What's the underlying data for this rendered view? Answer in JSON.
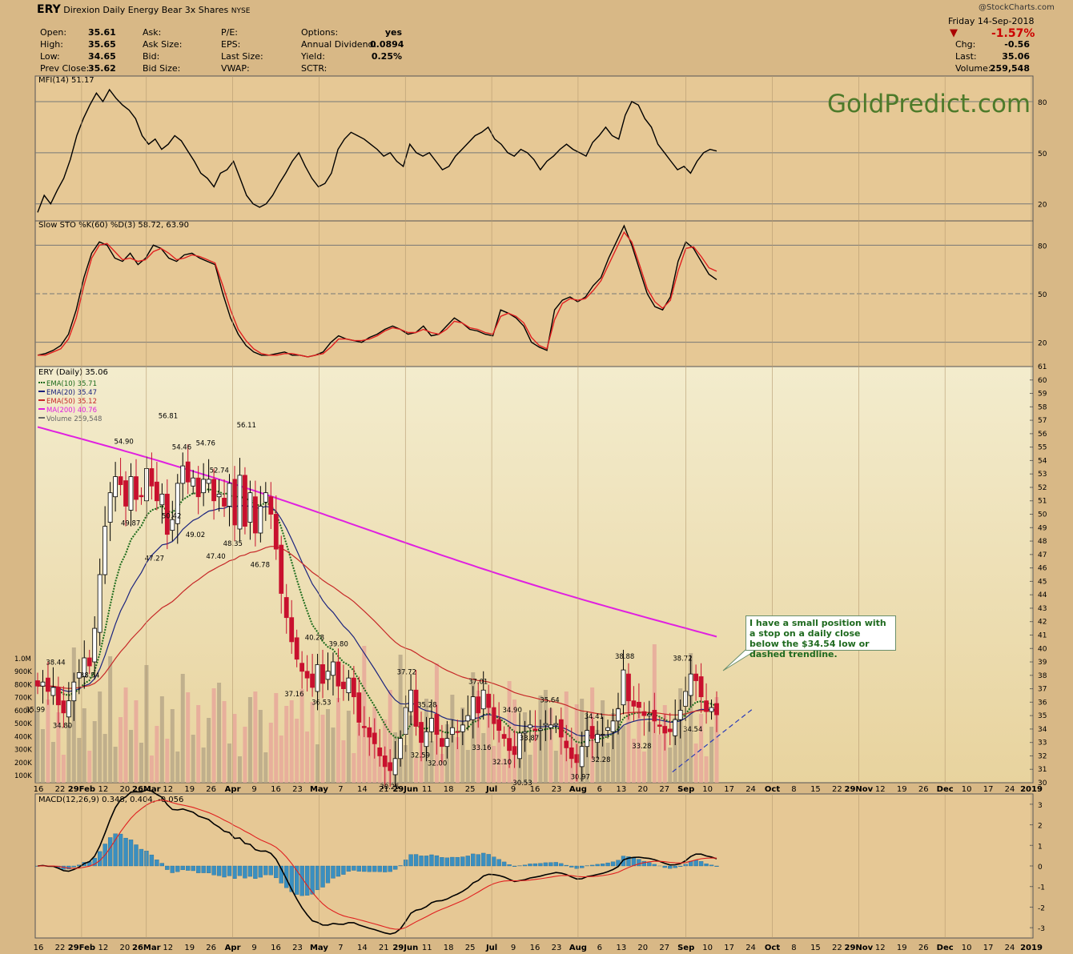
{
  "header": {
    "symbol": "ERY",
    "name": "Direxion Daily Energy Bear 3x Shares",
    "exchange": "NYSE",
    "source": "@StockCharts.com",
    "date": "Friday  14-Sep-2018",
    "change_pct": "-1.57%",
    "fields": [
      {
        "k": "Open:",
        "v": "35.61"
      },
      {
        "k": "High:",
        "v": "35.65"
      },
      {
        "k": "Low:",
        "v": "34.65"
      },
      {
        "k": "Prev Close:",
        "v": "35.62"
      }
    ],
    "fields2": [
      "Ask:",
      "Ask Size:",
      "Bid:",
      "Bid Size:"
    ],
    "fields3": [
      "P/E:",
      "EPS:",
      "Last Size:",
      "VWAP:"
    ],
    "fields4": [
      {
        "k": "Options:",
        "v": "yes"
      },
      {
        "k": "Annual Dividend:",
        "v": "0.0894"
      },
      {
        "k": "Yield:",
        "v": "0.25%"
      },
      {
        "k": "SCTR:",
        "v": ""
      }
    ],
    "right": [
      {
        "k": "Chg:",
        "v": "-0.56"
      },
      {
        "k": "Last:",
        "v": "35.06"
      },
      {
        "k": "Volume:",
        "v": "259,548"
      }
    ]
  },
  "watermark": "GoldPredict.com",
  "annotation": "I have a small position with a stop on a daily close below the $34.54 low or dashed trendline.",
  "chart_data": [
    {
      "type": "line",
      "title": "MFI(14) 51.17",
      "y_ticks": [
        80,
        50,
        20
      ],
      "ylim": [
        10,
        95
      ],
      "series": [
        {
          "name": "MFI(14)",
          "color": "#000000",
          "values": [
            15,
            25,
            20,
            28,
            35,
            46,
            60,
            70,
            78,
            85,
            80,
            87,
            82,
            78,
            75,
            70,
            60,
            55,
            58,
            52,
            55,
            60,
            57,
            51,
            45,
            38,
            35,
            30,
            38,
            40,
            45,
            35,
            25,
            20,
            18,
            20,
            25,
            32,
            38,
            45,
            50,
            42,
            35,
            30,
            32,
            38,
            52,
            58,
            62,
            60,
            58,
            55,
            52,
            48,
            50,
            45,
            42,
            55,
            50,
            48,
            50,
            45,
            40,
            42,
            48,
            52,
            56,
            60,
            62,
            65,
            58,
            55,
            50,
            48,
            52,
            50,
            46,
            40,
            45,
            48,
            52,
            55,
            52,
            50,
            48,
            56,
            60,
            65,
            60,
            58,
            72,
            80,
            78,
            70,
            65,
            55,
            50,
            45,
            40,
            42,
            38,
            45,
            50,
            52,
            51
          ]
        }
      ]
    },
    {
      "type": "line",
      "title": "Slow STO %K(60) %D(3) 58.72, 63.90",
      "y_ticks": [
        80,
        50,
        20
      ],
      "ylim": [
        5,
        95
      ],
      "series": [
        {
          "name": "%K(60)",
          "color": "#000000",
          "values": [
            12,
            13,
            15,
            18,
            25,
            40,
            60,
            75,
            82,
            80,
            72,
            70,
            75,
            68,
            72,
            80,
            78,
            72,
            70,
            74,
            75,
            72,
            70,
            68,
            50,
            35,
            25,
            18,
            14,
            12,
            12,
            13,
            14,
            12,
            12,
            11,
            12,
            14,
            20,
            24,
            22,
            21,
            20,
            23,
            25,
            28,
            30,
            28,
            25,
            26,
            30,
            24,
            25,
            30,
            35,
            32,
            28,
            27,
            25,
            24,
            40,
            38,
            35,
            30,
            20,
            17,
            15,
            40,
            46,
            48,
            45,
            48,
            55,
            60,
            72,
            82,
            92,
            80,
            65,
            50,
            42,
            40,
            48,
            70,
            82,
            78,
            70,
            62,
            58.72
          ]
        },
        {
          "name": "%D(3)",
          "color": "#e02020",
          "values": [
            12,
            12,
            14,
            16,
            22,
            35,
            55,
            72,
            80,
            81,
            76,
            71,
            72,
            70,
            71,
            76,
            78,
            75,
            71,
            72,
            74,
            73,
            71,
            69,
            55,
            40,
            28,
            21,
            16,
            13,
            12,
            12,
            13,
            13,
            12,
            11,
            12,
            13,
            17,
            22,
            22,
            21,
            21,
            22,
            24,
            27,
            29,
            28,
            26,
            26,
            28,
            26,
            25,
            28,
            33,
            32,
            29,
            28,
            26,
            25,
            36,
            38,
            36,
            32,
            23,
            18,
            16,
            34,
            44,
            47,
            46,
            47,
            52,
            58,
            68,
            78,
            88,
            82,
            68,
            53,
            45,
            41,
            46,
            64,
            78,
            79,
            73,
            66,
            63.9
          ]
        }
      ]
    },
    {
      "type": "candlestick",
      "title": "ERY (Daily) 35.06",
      "ylim": [
        30,
        61
      ],
      "y_ticks": [
        30,
        31,
        32,
        33,
        34,
        35,
        36,
        37,
        38,
        39,
        40,
        41,
        42,
        43,
        44,
        45,
        46,
        47,
        48,
        49,
        50,
        51,
        52,
        53,
        54,
        55,
        56,
        57,
        58,
        59,
        60,
        61
      ],
      "legend": [
        {
          "name": "EMA(10) 35.71",
          "color": "#1a6a1a"
        },
        {
          "name": "EMA(20) 35.47",
          "color": "#1a237e"
        },
        {
          "name": "EMA(50) 35.12",
          "color": "#c62828"
        },
        {
          "name": "MA(200) 40.76",
          "color": "#e020e0"
        },
        {
          "name": "Volume 259,548",
          "color": "#666666"
        }
      ],
      "closes": [
        37.2,
        37.5,
        36.8,
        37.1,
        35.8,
        35.2,
        36.1,
        37.5,
        38.2,
        39.3,
        38.7,
        41.5,
        45.5,
        49.1,
        51.6,
        52.8,
        52.2,
        50.6,
        52.8,
        51.1,
        51.3,
        53.4,
        52.1,
        51.0,
        51.5,
        48.5,
        49.6,
        52.3,
        53.6,
        52.4,
        52.7,
        51.3,
        52.6,
        52.6,
        51.0,
        51.5,
        50.6,
        52.3,
        49.2,
        52.9,
        49.1,
        51.6,
        48.6,
        50.6,
        51.6,
        50.0,
        47.4,
        44.1,
        42.3,
        40.5,
        39.2,
        38.3,
        37.8,
        37.1,
        38.8,
        37.4,
        38.3,
        39.0,
        37.2,
        37.0,
        37.8,
        36.4,
        34.5,
        34.1,
        33.4,
        32.9,
        32.0,
        31.2,
        30.9,
        31.8,
        33.3,
        35.6,
        36.9,
        34.2,
        33.0,
        33.8,
        34.8,
        33.6,
        32.7,
        33.3,
        34.1,
        33.8,
        34.3,
        35.0,
        36.4,
        35.2,
        36.9,
        35.6,
        34.4,
        33.9,
        33.3,
        32.4,
        32.1,
        33.7,
        33.8,
        34.3,
        33.9,
        34.0,
        34.4,
        34.3,
        34.4,
        33.4,
        32.6,
        31.8,
        31.5,
        32.7,
        33.9,
        33.3,
        33.6,
        33.6,
        34.1,
        34.6,
        35.5,
        38.4,
        36.1,
        35.7,
        35.6,
        35.0,
        35.1,
        34.6,
        34.2,
        33.7,
        33.8,
        34.7,
        35.4,
        36.8,
        38.1,
        37.6,
        36.4,
        35.3,
        35.6,
        35.06
      ],
      "labels": [
        {
          "t": "38.44",
          "x": 0.03,
          "y": 38.44,
          "up": true
        },
        {
          "t": "35.99",
          "x": 0.0,
          "y": 35.99,
          "up": false
        },
        {
          "t": "34.80",
          "x": 0.04,
          "y": 34.8,
          "up": false
        },
        {
          "t": "38.54",
          "x": 0.08,
          "y": 38.54,
          "up": false
        },
        {
          "t": "54.90",
          "x": 0.13,
          "y": 54.9,
          "up": true
        },
        {
          "t": "49.87",
          "x": 0.14,
          "y": 49.87,
          "up": false
        },
        {
          "t": "47.27",
          "x": 0.175,
          "y": 47.27,
          "up": false
        },
        {
          "t": "56.81",
          "x": 0.195,
          "y": 56.81,
          "up": true
        },
        {
          "t": "54.46",
          "x": 0.215,
          "y": 54.46,
          "up": true
        },
        {
          "t": "50.42",
          "x": 0.2,
          "y": 50.42,
          "up": false
        },
        {
          "t": "54.76",
          "x": 0.25,
          "y": 54.76,
          "up": true
        },
        {
          "t": "49.02",
          "x": 0.235,
          "y": 49.02,
          "up": false
        },
        {
          "t": "52.74",
          "x": 0.27,
          "y": 52.74,
          "up": true
        },
        {
          "t": "47.40",
          "x": 0.265,
          "y": 47.4,
          "up": false
        },
        {
          "t": "48.35",
          "x": 0.29,
          "y": 48.35,
          "up": false
        },
        {
          "t": "56.11",
          "x": 0.31,
          "y": 56.11,
          "up": true
        },
        {
          "t": "46.78",
          "x": 0.33,
          "y": 46.78,
          "up": false
        },
        {
          "t": "40.28",
          "x": 0.41,
          "y": 40.28,
          "up": true
        },
        {
          "t": "39.80",
          "x": 0.445,
          "y": 39.8,
          "up": true
        },
        {
          "t": "37.16",
          "x": 0.38,
          "y": 37.16,
          "up": false
        },
        {
          "t": "36.53",
          "x": 0.42,
          "y": 36.53,
          "up": false
        },
        {
          "t": "37.72",
          "x": 0.545,
          "y": 37.72,
          "up": true
        },
        {
          "t": "30.25",
          "x": 0.52,
          "y": 30.25,
          "up": false
        },
        {
          "t": "35.28",
          "x": 0.575,
          "y": 35.28,
          "up": true
        },
        {
          "t": "32.59",
          "x": 0.565,
          "y": 32.59,
          "up": false
        },
        {
          "t": "32.00",
          "x": 0.59,
          "y": 32.0,
          "up": false
        },
        {
          "t": "37.01",
          "x": 0.65,
          "y": 37.01,
          "up": true
        },
        {
          "t": "33.16",
          "x": 0.655,
          "y": 33.16,
          "up": false
        },
        {
          "t": "34.90",
          "x": 0.7,
          "y": 34.9,
          "up": true
        },
        {
          "t": "33.87",
          "x": 0.725,
          "y": 33.87,
          "up": false
        },
        {
          "t": "32.10",
          "x": 0.685,
          "y": 32.1,
          "up": false
        },
        {
          "t": "30.53",
          "x": 0.715,
          "y": 30.53,
          "up": false
        },
        {
          "t": "35.64",
          "x": 0.755,
          "y": 35.64,
          "up": true
        },
        {
          "t": "30.97",
          "x": 0.8,
          "y": 30.97,
          "up": false
        },
        {
          "t": "32.28",
          "x": 0.83,
          "y": 32.28,
          "up": false
        },
        {
          "t": "34.41",
          "x": 0.82,
          "y": 34.41,
          "up": true
        },
        {
          "t": "38.88",
          "x": 0.865,
          "y": 38.88,
          "up": true
        },
        {
          "t": "33.28",
          "x": 0.89,
          "y": 33.28,
          "up": false
        },
        {
          "t": "38.72",
          "x": 0.95,
          "y": 38.72,
          "up": true
        },
        {
          "t": "34.54",
          "x": 0.965,
          "y": 34.54,
          "up": false
        }
      ],
      "volume_ticks": [
        "1.0M",
        "900K",
        "800K",
        "700K",
        "600K",
        "500K",
        "400K",
        "300K",
        "200K",
        "100K"
      ]
    },
    {
      "type": "bar+line",
      "title": "MACD(12,26,9) 0.348, 0.404, -0.056",
      "y_ticks": [
        3,
        2,
        1,
        0,
        -1,
        -2,
        -3
      ],
      "ylim": [
        -3.5,
        3.5
      ]
    }
  ],
  "x_ticks": [
    "16",
    "22",
    "29Feb",
    "12",
    "20",
    "26Mar",
    "12",
    "19",
    "26",
    "Apr",
    "9",
    "16",
    "23",
    "May",
    "7",
    "14",
    "21",
    "29Jun",
    "11",
    "18",
    "25",
    "Jul",
    "9",
    "16",
    "23",
    "Aug",
    "6",
    "13",
    "20",
    "27",
    "Sep",
    "10",
    "17",
    "24",
    "Oct",
    "8",
    "15",
    "22",
    "29Nov",
    "12",
    "19",
    "26",
    "Dec",
    "10",
    "17",
    "24",
    "2019"
  ]
}
